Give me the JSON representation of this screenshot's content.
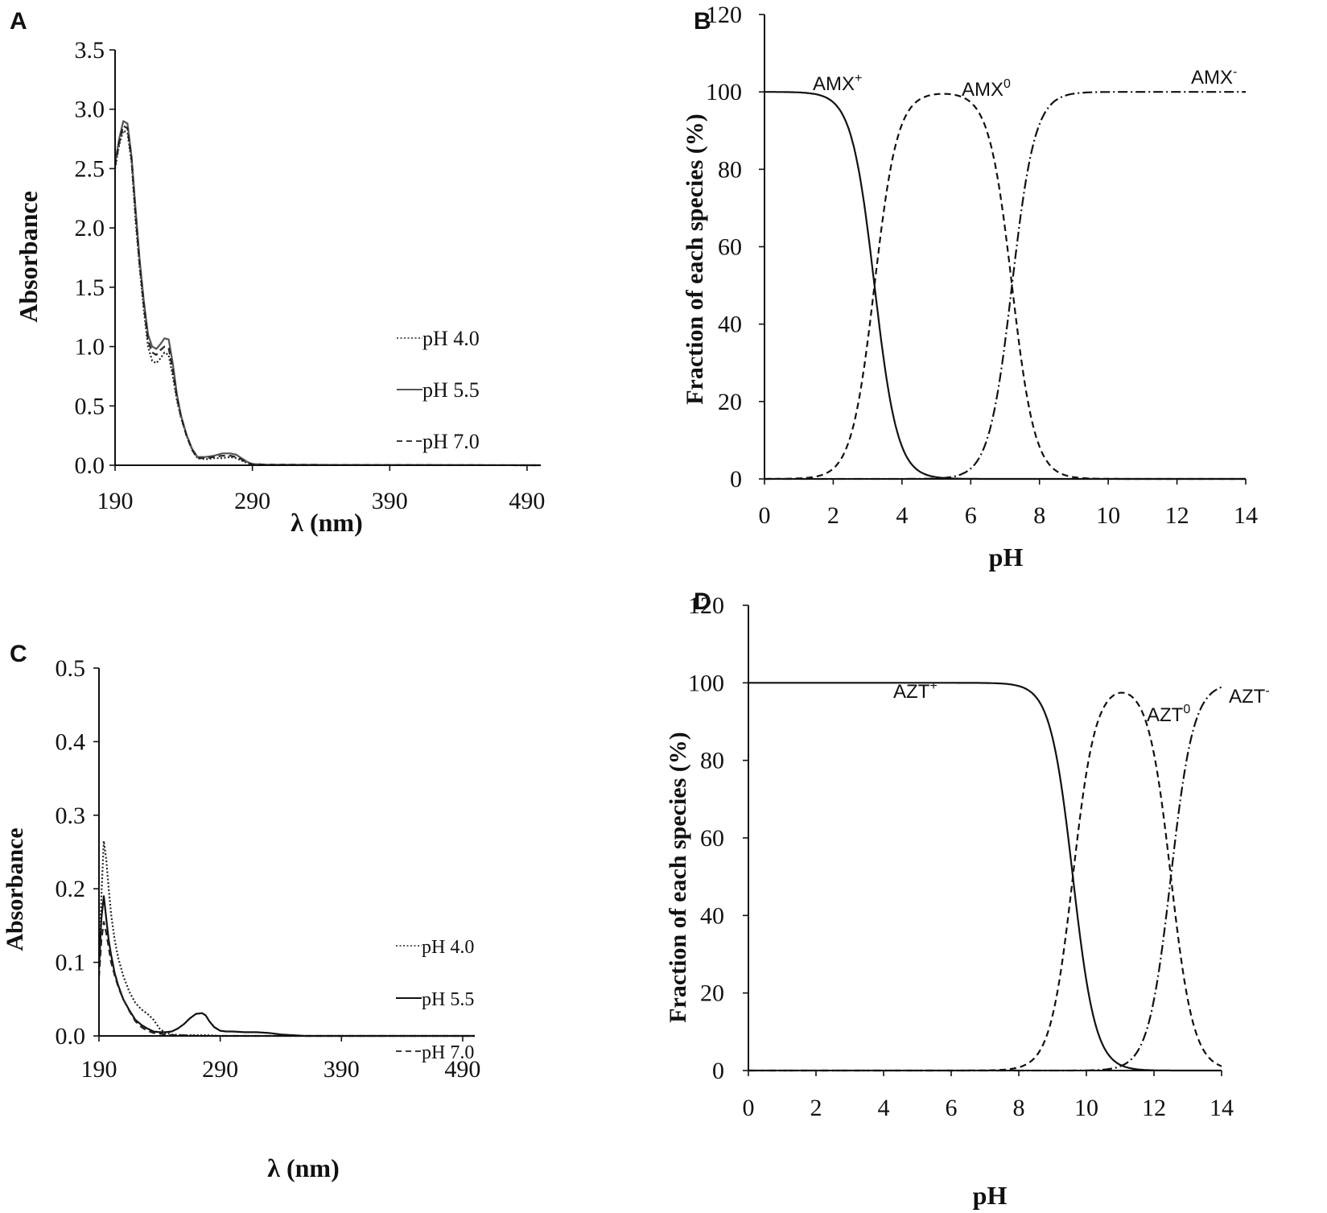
{
  "figure": {
    "panels": [
      {
        "letter": "A"
      },
      {
        "letter": "B"
      },
      {
        "letter": "C"
      },
      {
        "letter": "D"
      }
    ]
  },
  "chart_data": [
    {
      "panel": "A",
      "type": "line",
      "xlabel": "λ (nm)",
      "ylabel": "Absorbance",
      "xlim": [
        190,
        500
      ],
      "ylim": [
        0,
        3.5
      ],
      "xticks": [
        "190",
        "290",
        "390",
        "490"
      ],
      "yticks": [
        "0.0",
        "0.5",
        "1.0",
        "1.5",
        "2.0",
        "2.5",
        "3.0",
        "3.5"
      ],
      "grid": false,
      "legend_position": "right",
      "series": [
        {
          "name": "pH 4.0",
          "style": "dotted",
          "color": "#222222",
          "x": [
            190,
            193,
            196,
            199,
            202,
            205,
            208,
            211,
            214,
            217,
            220,
            223,
            226,
            229,
            232,
            235,
            238,
            242,
            246,
            250,
            256,
            262,
            268,
            274,
            278,
            282,
            286,
            290,
            300,
            350,
            400,
            450,
            500
          ],
          "y": [
            2.5,
            2.7,
            2.82,
            2.8,
            2.55,
            2.05,
            1.65,
            1.3,
            1.0,
            0.88,
            0.86,
            0.9,
            0.95,
            0.93,
            0.75,
            0.55,
            0.4,
            0.25,
            0.13,
            0.06,
            0.05,
            0.06,
            0.06,
            0.07,
            0.06,
            0.04,
            0.02,
            0.01,
            0.005,
            0.003,
            0.002,
            0.001,
            0.0
          ]
        },
        {
          "name": "pH 5.5",
          "style": "solid",
          "color": "#555555",
          "x": [
            190,
            193,
            196,
            199,
            202,
            205,
            208,
            211,
            214,
            217,
            220,
            223,
            226,
            229,
            232,
            235,
            238,
            242,
            246,
            250,
            256,
            262,
            268,
            274,
            278,
            282,
            286,
            290,
            300,
            350,
            400,
            450,
            500
          ],
          "y": [
            2.55,
            2.75,
            2.9,
            2.88,
            2.6,
            2.15,
            1.72,
            1.38,
            1.1,
            1.0,
            0.98,
            1.02,
            1.07,
            1.06,
            0.86,
            0.6,
            0.42,
            0.26,
            0.14,
            0.07,
            0.07,
            0.08,
            0.1,
            0.1,
            0.09,
            0.06,
            0.03,
            0.01,
            0.005,
            0.003,
            0.002,
            0.001,
            0.0
          ]
        },
        {
          "name": "pH 7.0",
          "style": "dashed",
          "color": "#222222",
          "x": [
            190,
            193,
            196,
            199,
            202,
            205,
            208,
            211,
            214,
            217,
            220,
            223,
            226,
            229,
            232,
            235,
            238,
            242,
            246,
            250,
            256,
            262,
            268,
            274,
            278,
            282,
            286,
            290,
            300,
            350,
            400,
            450,
            500
          ],
          "y": [
            2.52,
            2.72,
            2.86,
            2.84,
            2.58,
            2.1,
            1.68,
            1.34,
            1.05,
            0.95,
            0.93,
            0.97,
            1.0,
            0.99,
            0.8,
            0.57,
            0.41,
            0.25,
            0.13,
            0.06,
            0.06,
            0.07,
            0.08,
            0.08,
            0.07,
            0.05,
            0.02,
            0.01,
            0.005,
            0.003,
            0.002,
            0.001,
            0.0
          ]
        }
      ]
    },
    {
      "panel": "B",
      "type": "line",
      "xlabel": "pH",
      "ylabel": "Fraction of each species (%)",
      "xlim": [
        0,
        14
      ],
      "ylim": [
        0,
        120
      ],
      "xticks": [
        "0",
        "2",
        "4",
        "6",
        "8",
        "10",
        "12",
        "14"
      ],
      "yticks": [
        "0",
        "20",
        "40",
        "60",
        "80",
        "100",
        "120"
      ],
      "grid": false,
      "species_model": {
        "pKa1": 3.2,
        "pKa2": 7.2,
        "n": 1.3
      },
      "series": [
        {
          "name": "AMX+",
          "label_base": "AMX",
          "label_sup": "+",
          "style": "solid"
        },
        {
          "name": "AMX0",
          "label_base": "AMX",
          "label_sup": "0",
          "style": "dashed"
        },
        {
          "name": "AMX-",
          "label_base": "AMX",
          "label_sup": "-",
          "style": "dashdot"
        }
      ]
    },
    {
      "panel": "C",
      "type": "line",
      "xlabel": "λ (nm)",
      "ylabel": "Absorbance",
      "xlim": [
        190,
        500
      ],
      "ylim": [
        0,
        0.5
      ],
      "xticks": [
        "190",
        "290",
        "390",
        "490"
      ],
      "yticks": [
        "0.0",
        "0.1",
        "0.2",
        "0.3",
        "0.4",
        "0.5"
      ],
      "grid": false,
      "legend_position": "right",
      "series": [
        {
          "name": "pH 4.0",
          "style": "dotted",
          "color": "#222222",
          "x": [
            190,
            192,
            194,
            196,
            198,
            200,
            203,
            206,
            210,
            215,
            220,
            225,
            230,
            235,
            240,
            245,
            250,
            260,
            270,
            280,
            290,
            300,
            320,
            340,
            360,
            400,
            450,
            500
          ],
          "y": [
            0.1,
            0.19,
            0.265,
            0.24,
            0.2,
            0.165,
            0.13,
            0.105,
            0.082,
            0.06,
            0.045,
            0.036,
            0.03,
            0.022,
            0.01,
            0.004,
            0.002,
            0.001,
            0.001,
            0.001,
            0.0,
            0.0,
            0.0,
            0.0,
            0.0,
            0.0,
            0.0,
            0.0
          ]
        },
        {
          "name": "pH 5.5",
          "style": "solid",
          "color": "#111111",
          "x": [
            190,
            192,
            194,
            196,
            198,
            200,
            203,
            206,
            210,
            215,
            220,
            225,
            230,
            235,
            240,
            245,
            250,
            255,
            260,
            265,
            270,
            275,
            278,
            281,
            285,
            290,
            295,
            300,
            310,
            320,
            330,
            340,
            350,
            360,
            400,
            450,
            500
          ],
          "y": [
            0.09,
            0.16,
            0.19,
            0.16,
            0.13,
            0.11,
            0.085,
            0.068,
            0.05,
            0.035,
            0.022,
            0.015,
            0.01,
            0.006,
            0.005,
            0.005,
            0.006,
            0.01,
            0.016,
            0.024,
            0.03,
            0.031,
            0.028,
            0.02,
            0.012,
            0.007,
            0.006,
            0.006,
            0.005,
            0.005,
            0.004,
            0.002,
            0.001,
            0.0,
            0.0,
            0.0,
            0.0
          ]
        },
        {
          "name": "pH 7.0",
          "style": "dashed",
          "color": "#222222",
          "x": [
            190,
            192,
            194,
            196,
            198,
            200,
            203,
            206,
            210,
            215,
            220,
            225,
            230,
            235,
            240,
            245,
            250,
            260,
            270,
            280,
            290,
            300,
            320,
            340,
            360,
            400,
            450,
            500
          ],
          "y": [
            0.08,
            0.13,
            0.155,
            0.14,
            0.12,
            0.1,
            0.082,
            0.066,
            0.05,
            0.034,
            0.02,
            0.012,
            0.007,
            0.004,
            0.003,
            0.002,
            0.001,
            0.001,
            0.0,
            0.0,
            0.0,
            0.0,
            0.0,
            0.0,
            0.0,
            0.0,
            0.0,
            0.0
          ]
        }
      ]
    },
    {
      "panel": "D",
      "type": "line",
      "xlabel": "pH",
      "ylabel": "Fraction of each species (%)",
      "xlim": [
        0,
        14
      ],
      "ylim": [
        0,
        120
      ],
      "xticks": [
        "0",
        "2",
        "4",
        "6",
        "8",
        "10",
        "12",
        "14"
      ],
      "yticks": [
        "0",
        "20",
        "40",
        "60",
        "80",
        "100",
        "120"
      ],
      "grid": false,
      "species_model": {
        "pKa1": 9.6,
        "pKa2": 12.5,
        "n": 1.3
      },
      "series": [
        {
          "name": "AZT+",
          "label_base": "AZT",
          "label_sup": "+",
          "style": "solid"
        },
        {
          "name": "AZT0",
          "label_base": "AZT",
          "label_sup": "0",
          "style": "dashed"
        },
        {
          "name": "AZT-",
          "label_base": "AZT",
          "label_sup": "-",
          "style": "dashdot"
        }
      ]
    }
  ]
}
